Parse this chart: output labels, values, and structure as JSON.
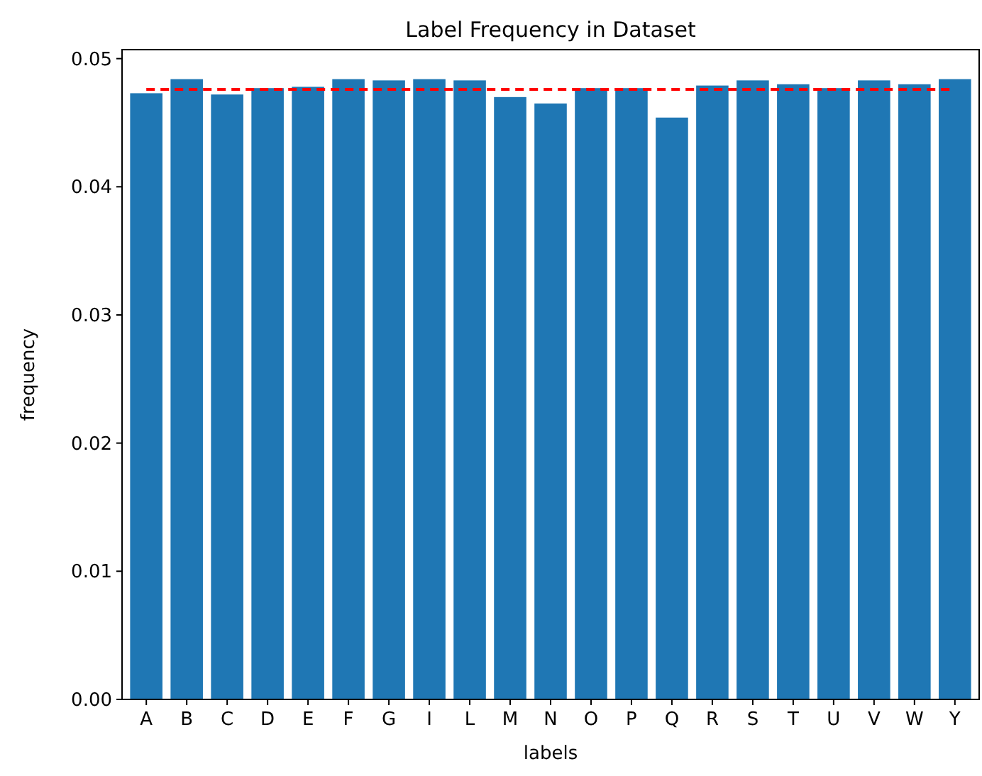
{
  "chart_data": {
    "type": "bar",
    "title": "Label Frequency in Dataset",
    "xlabel": "labels",
    "ylabel": "frequency",
    "categories": [
      "A",
      "B",
      "C",
      "D",
      "E",
      "F",
      "G",
      "I",
      "L",
      "M",
      "N",
      "O",
      "P",
      "Q",
      "R",
      "S",
      "T",
      "U",
      "V",
      "W",
      "Y"
    ],
    "values": [
      0.0473,
      0.0484,
      0.0472,
      0.0477,
      0.0478,
      0.0484,
      0.0483,
      0.0484,
      0.0483,
      0.047,
      0.0465,
      0.0477,
      0.0477,
      0.0454,
      0.0479,
      0.0483,
      0.048,
      0.0477,
      0.0483,
      0.048,
      0.0484
    ],
    "color": "#1f77b4",
    "ylim": [
      0,
      0.0507
    ],
    "yticks": [
      {
        "value": 0,
        "label": "0.00"
      },
      {
        "value": 0.01,
        "label": "0.01"
      },
      {
        "value": 0.02,
        "label": "0.02"
      },
      {
        "value": 0.03,
        "label": "0.03"
      },
      {
        "value": 0.04,
        "label": "0.04"
      },
      {
        "value": 0.05,
        "label": "0.05"
      }
    ],
    "ref_lines": [
      {
        "axis": "y",
        "value": 0.0476,
        "color": "#ff0000",
        "line_style": "dashed"
      }
    ],
    "grid": false
  }
}
